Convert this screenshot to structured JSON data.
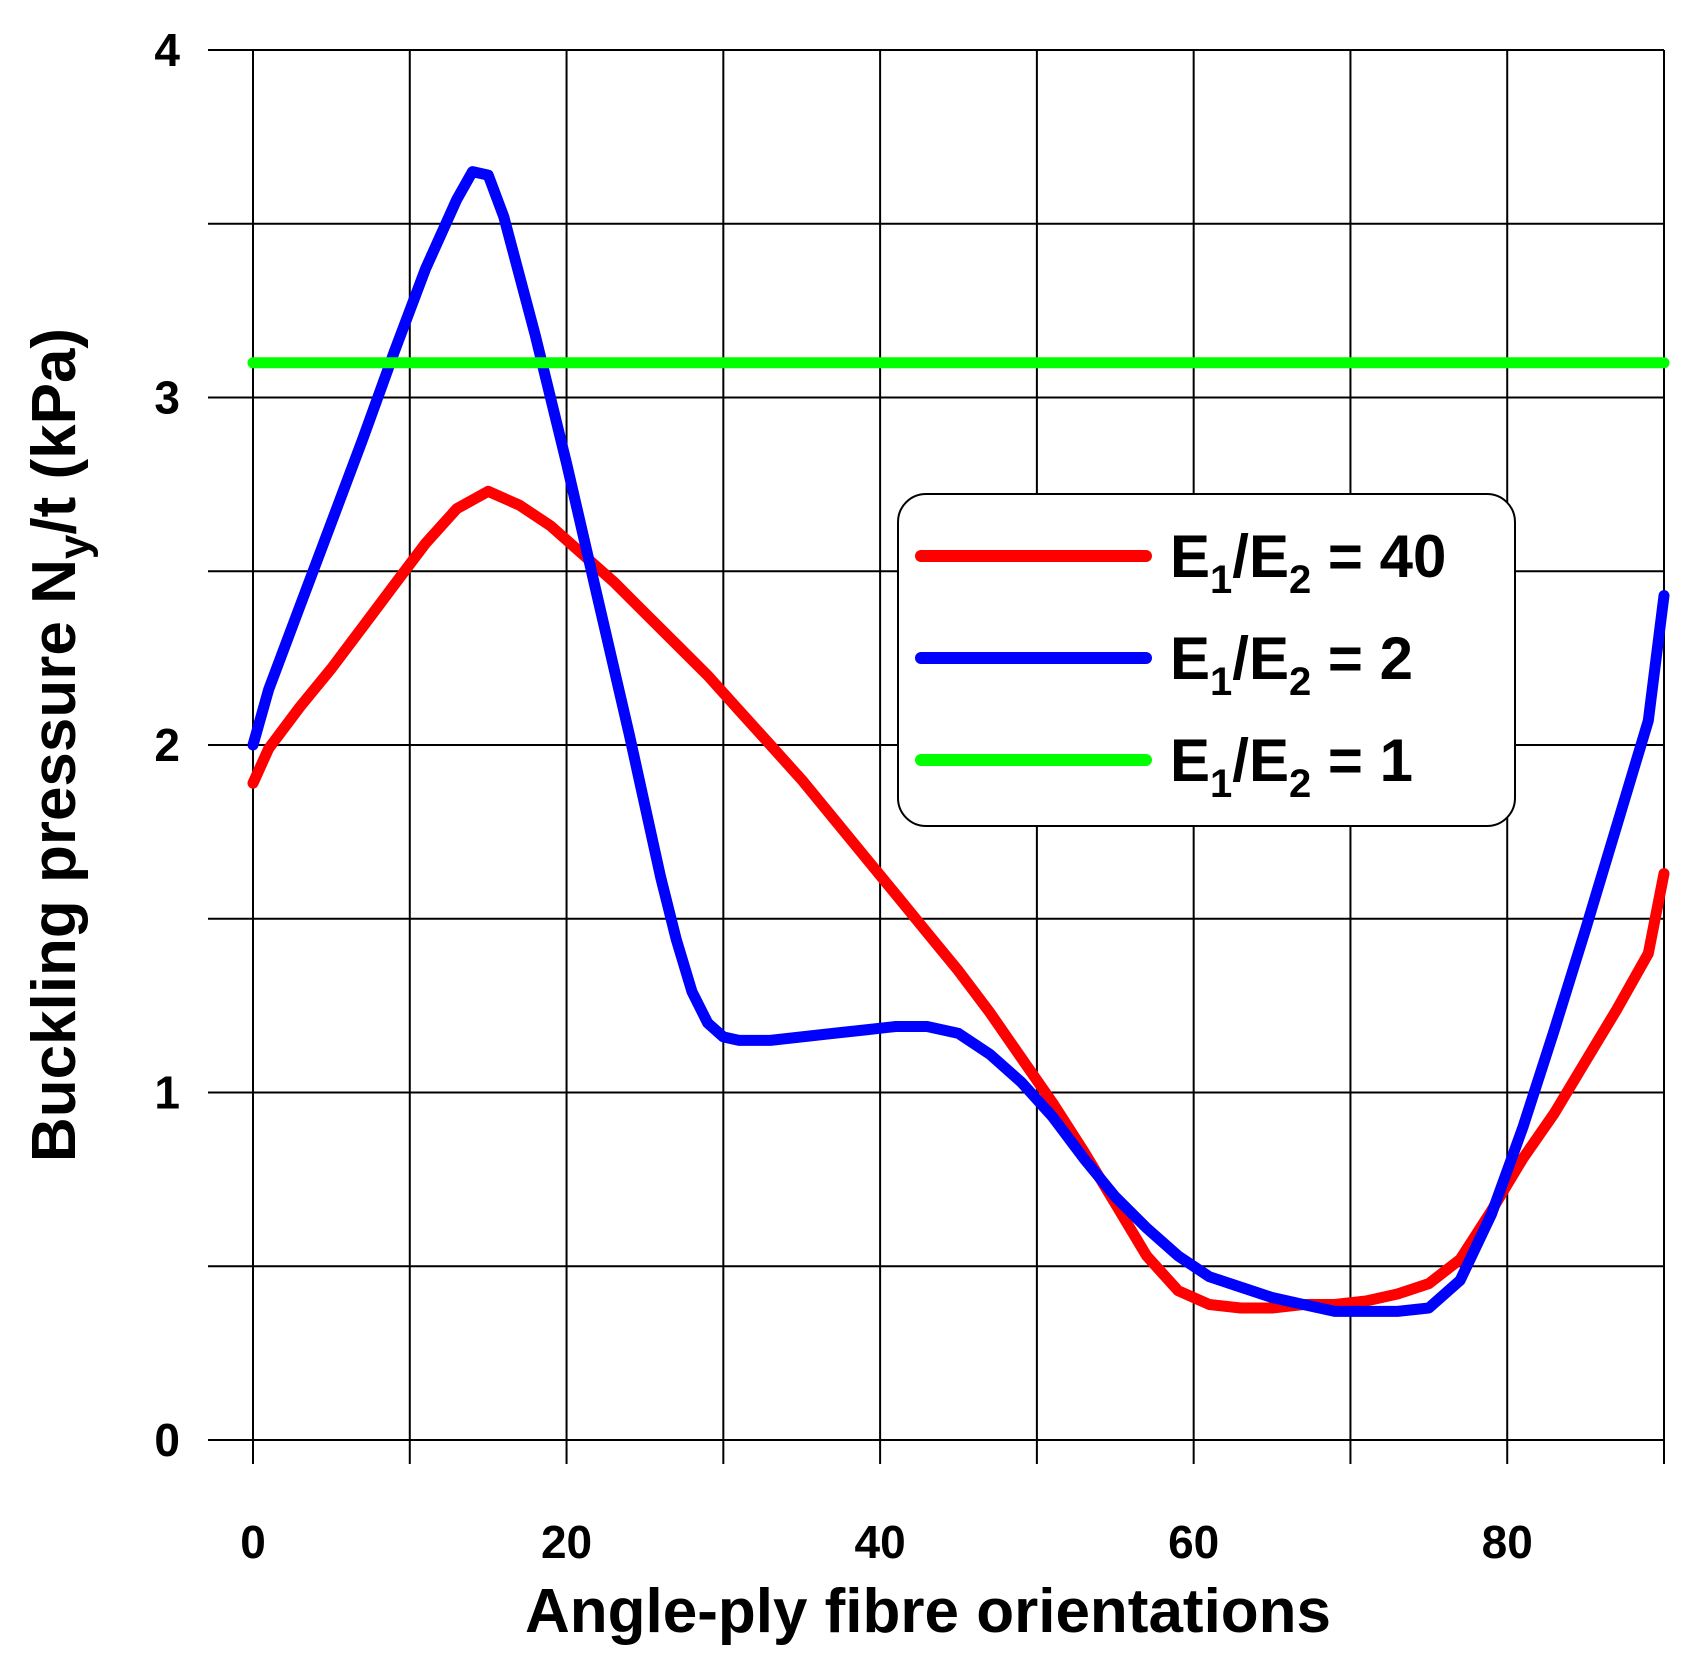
{
  "chart_data": {
    "type": "line",
    "xlabel": "Angle-ply fibre orientations",
    "ylabel": {
      "prefix": "Buckling pressure N",
      "subscript": "y",
      "suffix": "/t (kPa)"
    },
    "xlim": [
      0,
      90
    ],
    "ylim": [
      0,
      4
    ],
    "x_ticks": [
      0,
      20,
      40,
      60,
      80
    ],
    "x_minor_ticks": [
      0,
      10,
      20,
      30,
      40,
      50,
      60,
      70,
      80,
      90
    ],
    "y_ticks": [
      0,
      1,
      2,
      3,
      4
    ],
    "y_minor_ticks": [
      0,
      0.5,
      1,
      1.5,
      2,
      2.5,
      3,
      3.5,
      4
    ],
    "grid": true,
    "legend_position": "center-right",
    "series": [
      {
        "label": {
          "main": "E",
          "sub1": "1",
          "slash": "/E",
          "sub2": "2",
          "rest": " = 40"
        },
        "color": "#ff0000",
        "x": [
          0,
          1,
          3,
          5,
          7,
          9,
          11,
          13,
          15,
          17,
          19,
          21,
          23,
          25,
          27,
          29,
          31,
          33,
          35,
          37,
          39,
          41,
          43,
          45,
          47,
          49,
          51,
          53,
          55,
          57,
          59,
          61,
          63,
          65,
          67,
          69,
          71,
          73,
          75,
          77,
          79,
          81,
          83,
          85,
          87,
          89,
          90
        ],
        "y": [
          1.89,
          1.99,
          2.11,
          2.22,
          2.34,
          2.46,
          2.58,
          2.68,
          2.73,
          2.69,
          2.63,
          2.55,
          2.47,
          2.38,
          2.29,
          2.2,
          2.1,
          2.0,
          1.9,
          1.79,
          1.68,
          1.57,
          1.46,
          1.35,
          1.23,
          1.1,
          0.97,
          0.83,
          0.68,
          0.53,
          0.43,
          0.39,
          0.38,
          0.38,
          0.39,
          0.39,
          0.4,
          0.42,
          0.45,
          0.52,
          0.66,
          0.81,
          0.94,
          1.09,
          1.24,
          1.4,
          1.63
        ]
      },
      {
        "label": {
          "main": "E",
          "sub1": "1",
          "slash": "/E",
          "sub2": "2",
          "rest": " = 2"
        },
        "color": "#0000ff",
        "x": [
          0,
          1,
          3,
          5,
          7,
          9,
          11,
          13,
          14,
          15,
          16,
          18,
          20,
          22,
          24,
          26,
          27,
          28,
          29,
          30,
          31,
          33,
          35,
          37,
          39,
          41,
          43,
          45,
          47,
          49,
          51,
          53,
          55,
          57,
          59,
          61,
          63,
          65,
          67,
          69,
          71,
          73,
          75,
          77,
          79,
          81,
          83,
          85,
          87,
          89,
          90
        ],
        "y": [
          2.0,
          2.16,
          2.4,
          2.64,
          2.88,
          3.13,
          3.37,
          3.57,
          3.65,
          3.64,
          3.52,
          3.18,
          2.81,
          2.42,
          2.03,
          1.62,
          1.44,
          1.29,
          1.2,
          1.16,
          1.15,
          1.15,
          1.16,
          1.17,
          1.18,
          1.19,
          1.19,
          1.17,
          1.11,
          1.03,
          0.93,
          0.81,
          0.7,
          0.61,
          0.53,
          0.47,
          0.44,
          0.41,
          0.39,
          0.37,
          0.37,
          0.37,
          0.38,
          0.46,
          0.65,
          0.9,
          1.18,
          1.47,
          1.77,
          2.07,
          2.43
        ]
      },
      {
        "label": {
          "main": "E",
          "sub1": "1",
          "slash": "/E",
          "sub2": "2",
          "rest": " = 1"
        },
        "color": "#00ff00",
        "x": [
          0,
          90
        ],
        "y": [
          3.1,
          3.1
        ]
      }
    ]
  }
}
